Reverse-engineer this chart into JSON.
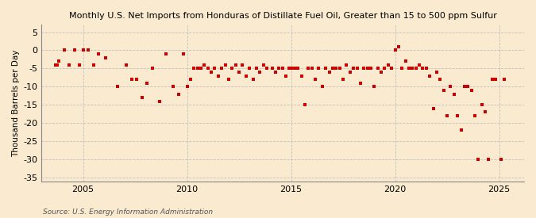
{
  "title": "Monthly U.S. Net Imports from Honduras of Distillate Fuel Oil, Greater than 15 to 500 ppm Sulfur",
  "ylabel": "Thousand Barrels per Day",
  "source": "Source: U.S. Energy Information Administration",
  "ylim": [
    -36,
    7
  ],
  "yticks": [
    5,
    0,
    -5,
    -10,
    -15,
    -20,
    -25,
    -30,
    -35
  ],
  "background_color": "#faebd0",
  "marker_color": "#cc0000",
  "grid_color": "#bbbbbb",
  "xlim": [
    2003.0,
    2026.2
  ],
  "xticks": [
    2005,
    2010,
    2015,
    2020,
    2025
  ],
  "monthly_data": [
    [
      2003,
      9,
      -4
    ],
    [
      2003,
      10,
      -4
    ],
    [
      2003,
      11,
      -3
    ],
    [
      2004,
      2,
      0
    ],
    [
      2004,
      5,
      -4
    ],
    [
      2004,
      8,
      0
    ],
    [
      2004,
      11,
      -4
    ],
    [
      2005,
      1,
      0
    ],
    [
      2005,
      4,
      0
    ],
    [
      2005,
      7,
      -4
    ],
    [
      2005,
      10,
      -1
    ],
    [
      2006,
      2,
      -2
    ],
    [
      2006,
      9,
      -10
    ],
    [
      2007,
      2,
      -4
    ],
    [
      2007,
      5,
      -8
    ],
    [
      2007,
      8,
      -8
    ],
    [
      2007,
      11,
      -13
    ],
    [
      2008,
      2,
      -9
    ],
    [
      2008,
      5,
      -5
    ],
    [
      2008,
      9,
      -14
    ],
    [
      2009,
      1,
      -1
    ],
    [
      2009,
      5,
      -10
    ],
    [
      2009,
      8,
      -12
    ],
    [
      2009,
      11,
      -1
    ],
    [
      2010,
      1,
      -10
    ],
    [
      2010,
      3,
      -8
    ],
    [
      2010,
      5,
      -5
    ],
    [
      2010,
      7,
      -5
    ],
    [
      2010,
      9,
      -5
    ],
    [
      2010,
      11,
      -4
    ],
    [
      2011,
      1,
      -5
    ],
    [
      2011,
      3,
      -6
    ],
    [
      2011,
      5,
      -5
    ],
    [
      2011,
      7,
      -7
    ],
    [
      2011,
      9,
      -5
    ],
    [
      2011,
      11,
      -4
    ],
    [
      2012,
      1,
      -8
    ],
    [
      2012,
      3,
      -5
    ],
    [
      2012,
      5,
      -4
    ],
    [
      2012,
      7,
      -6
    ],
    [
      2012,
      9,
      -4
    ],
    [
      2012,
      11,
      -7
    ],
    [
      2013,
      1,
      -5
    ],
    [
      2013,
      3,
      -8
    ],
    [
      2013,
      5,
      -5
    ],
    [
      2013,
      7,
      -6
    ],
    [
      2013,
      9,
      -4
    ],
    [
      2013,
      11,
      -5
    ],
    [
      2014,
      2,
      -5
    ],
    [
      2014,
      4,
      -6
    ],
    [
      2014,
      6,
      -5
    ],
    [
      2014,
      8,
      -5
    ],
    [
      2014,
      10,
      -7
    ],
    [
      2014,
      12,
      -5
    ],
    [
      2015,
      1,
      -5
    ],
    [
      2015,
      3,
      -5
    ],
    [
      2015,
      5,
      -5
    ],
    [
      2015,
      7,
      -7
    ],
    [
      2015,
      9,
      -15
    ],
    [
      2015,
      11,
      -5
    ],
    [
      2016,
      1,
      -5
    ],
    [
      2016,
      3,
      -8
    ],
    [
      2016,
      5,
      -5
    ],
    [
      2016,
      7,
      -10
    ],
    [
      2016,
      9,
      -5
    ],
    [
      2016,
      11,
      -6
    ],
    [
      2017,
      1,
      -5
    ],
    [
      2017,
      3,
      -5
    ],
    [
      2017,
      5,
      -5
    ],
    [
      2017,
      7,
      -8
    ],
    [
      2017,
      9,
      -4
    ],
    [
      2017,
      11,
      -6
    ],
    [
      2018,
      1,
      -5
    ],
    [
      2018,
      3,
      -5
    ],
    [
      2018,
      5,
      -9
    ],
    [
      2018,
      7,
      -5
    ],
    [
      2018,
      9,
      -5
    ],
    [
      2018,
      11,
      -5
    ],
    [
      2019,
      1,
      -10
    ],
    [
      2019,
      3,
      -5
    ],
    [
      2019,
      5,
      -6
    ],
    [
      2019,
      7,
      -5
    ],
    [
      2019,
      9,
      -4
    ],
    [
      2019,
      11,
      -5
    ],
    [
      2020,
      1,
      0
    ],
    [
      2020,
      3,
      1
    ],
    [
      2020,
      5,
      -5
    ],
    [
      2020,
      7,
      -3
    ],
    [
      2020,
      9,
      -5
    ],
    [
      2020,
      11,
      -5
    ],
    [
      2021,
      1,
      -5
    ],
    [
      2021,
      3,
      -4
    ],
    [
      2021,
      5,
      -5
    ],
    [
      2021,
      7,
      -5
    ],
    [
      2021,
      9,
      -7
    ],
    [
      2021,
      11,
      -16
    ],
    [
      2022,
      1,
      -6
    ],
    [
      2022,
      3,
      -8
    ],
    [
      2022,
      5,
      -11
    ],
    [
      2022,
      7,
      -18
    ],
    [
      2022,
      9,
      -10
    ],
    [
      2022,
      11,
      -12
    ],
    [
      2023,
      1,
      -18
    ],
    [
      2023,
      3,
      -22
    ],
    [
      2023,
      5,
      -10
    ],
    [
      2023,
      7,
      -10
    ],
    [
      2023,
      9,
      -11
    ],
    [
      2023,
      11,
      -18
    ],
    [
      2024,
      1,
      -30
    ],
    [
      2024,
      3,
      -15
    ],
    [
      2024,
      5,
      -17
    ],
    [
      2024,
      7,
      -30
    ],
    [
      2024,
      9,
      -8
    ],
    [
      2024,
      11,
      -8
    ],
    [
      2025,
      2,
      -30
    ],
    [
      2025,
      4,
      -8
    ]
  ]
}
